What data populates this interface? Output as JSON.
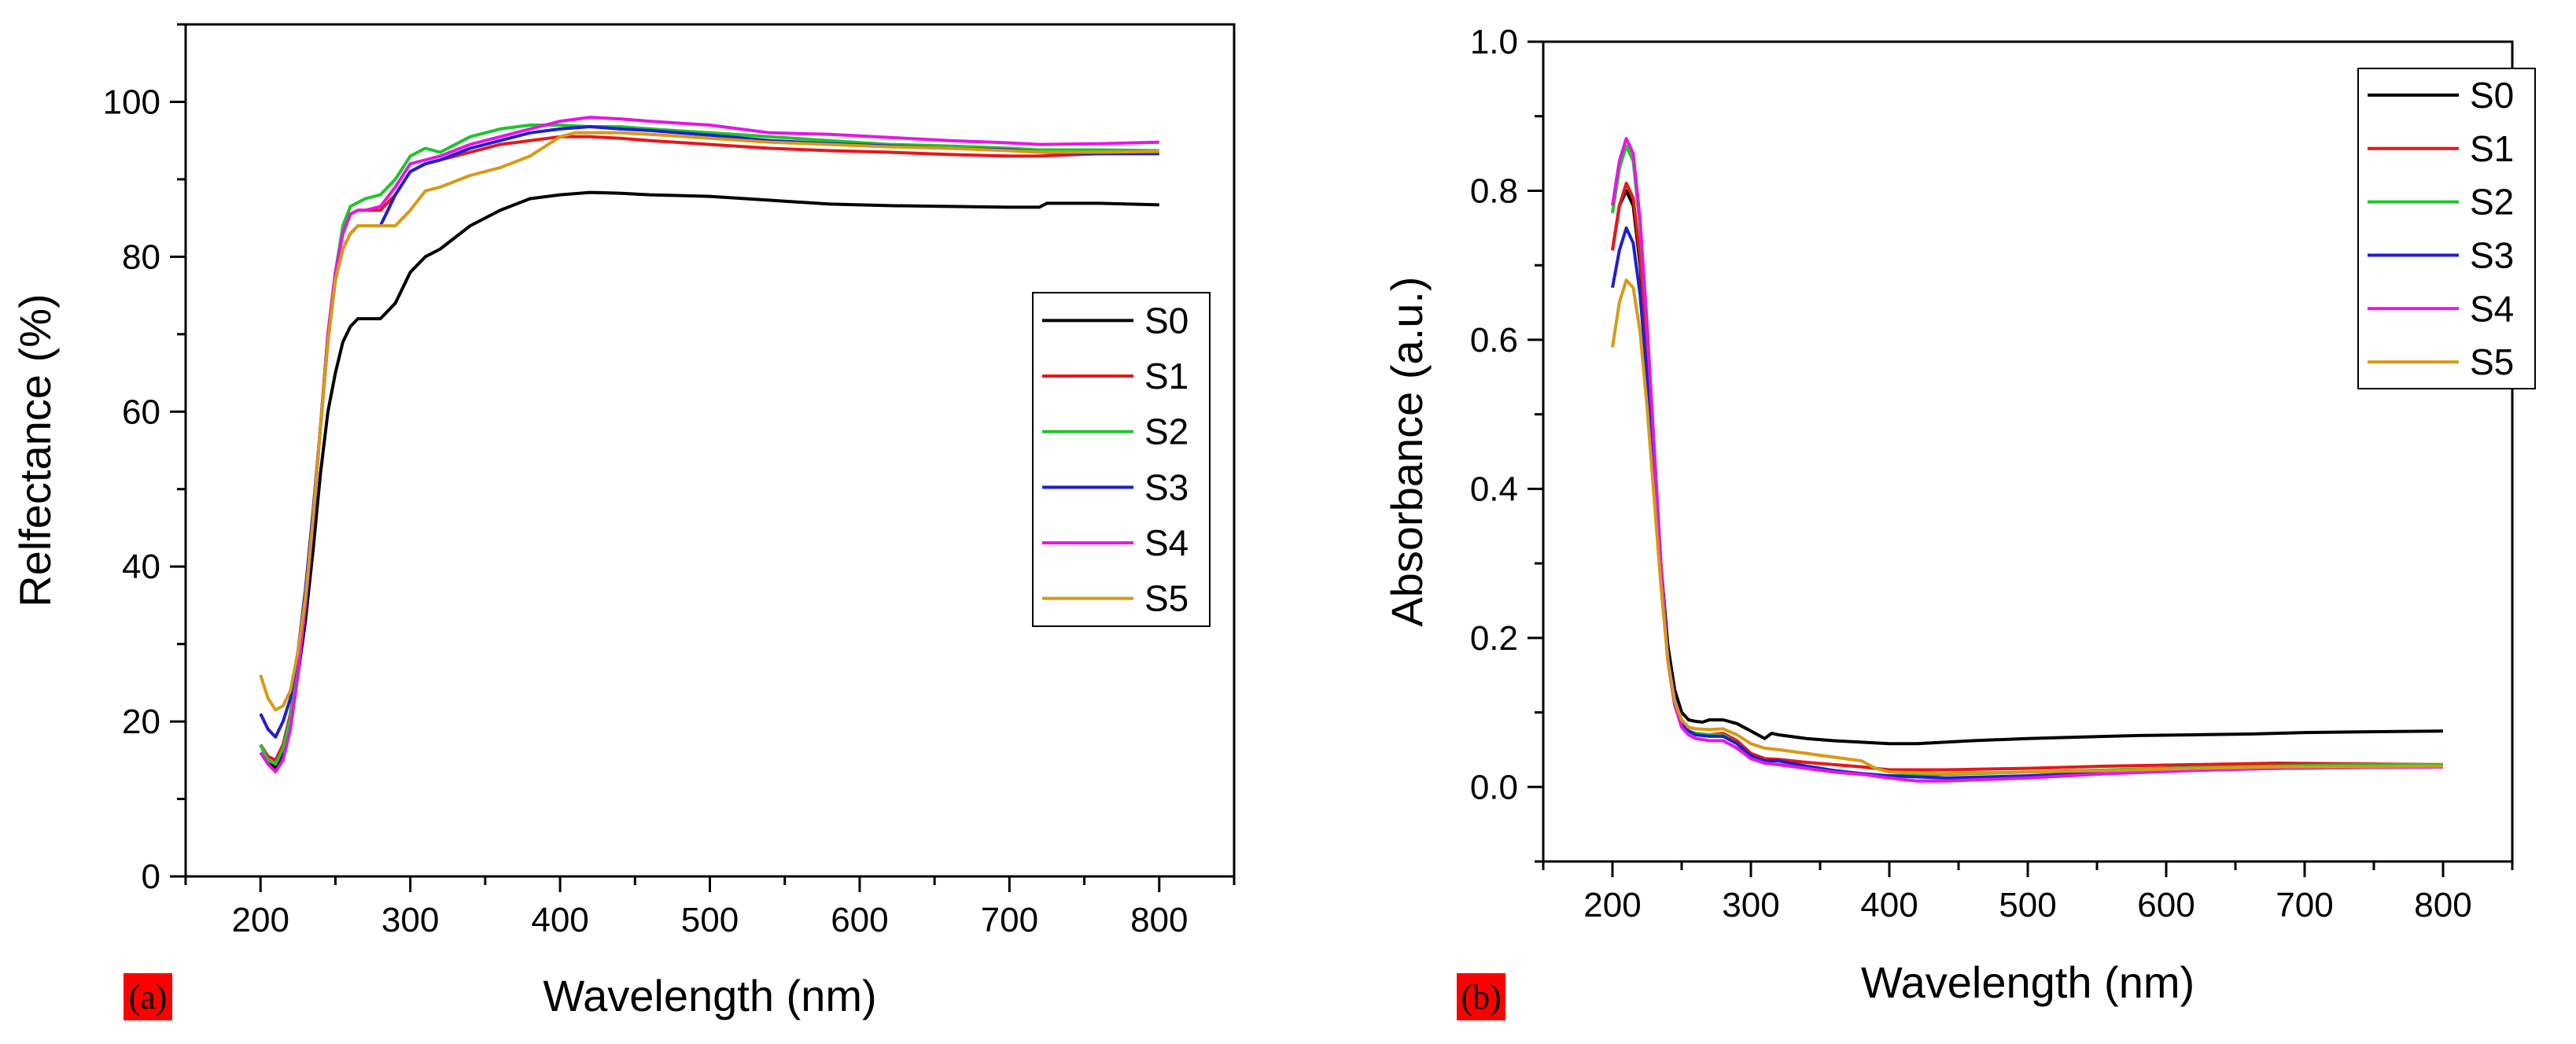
{
  "chart_data": [
    {
      "type": "line",
      "panel_label": "(a)",
      "xlabel": "Wavelength (nm)",
      "ylabel": "Relfectance (%)",
      "xlim": [
        150,
        850
      ],
      "ylim": [
        0,
        110
      ],
      "xticks": [
        200,
        300,
        400,
        500,
        600,
        700,
        800
      ],
      "yticks": [
        0,
        20,
        40,
        60,
        80,
        100
      ],
      "legend_position": "center-right",
      "series": [
        {
          "name": "S0",
          "color": "#000000",
          "x": [
            200,
            205,
            210,
            215,
            220,
            225,
            230,
            235,
            240,
            245,
            250,
            255,
            260,
            265,
            270,
            280,
            290,
            300,
            310,
            320,
            340,
            360,
            380,
            400,
            420,
            440,
            460,
            500,
            540,
            580,
            620,
            660,
            700,
            720,
            725,
            760,
            800
          ],
          "y": [
            17,
            15,
            14,
            16,
            20,
            26,
            33,
            42,
            52,
            60,
            65,
            69,
            71,
            72,
            72,
            72,
            74,
            78,
            80,
            81,
            84,
            86,
            87.5,
            88,
            88.3,
            88.2,
            88,
            87.8,
            87.3,
            86.8,
            86.6,
            86.5,
            86.4,
            86.4,
            86.9,
            86.9,
            86.7
          ]
        },
        {
          "name": "S1",
          "color": "#e8161b",
          "x": [
            200,
            205,
            210,
            215,
            220,
            225,
            230,
            235,
            240,
            245,
            250,
            255,
            260,
            265,
            270,
            280,
            290,
            300,
            310,
            320,
            340,
            360,
            380,
            400,
            420,
            440,
            460,
            500,
            540,
            580,
            620,
            660,
            700,
            720,
            760,
            800
          ],
          "y": [
            17,
            15.5,
            15,
            17,
            21,
            27,
            35,
            46,
            58,
            70,
            78,
            83,
            85.5,
            86,
            86,
            86,
            88,
            91,
            92,
            92.5,
            93.5,
            94.5,
            95,
            95.5,
            95.5,
            95.3,
            95,
            94.5,
            94,
            93.7,
            93.5,
            93.2,
            93,
            93,
            93.3,
            93.4
          ]
        },
        {
          "name": "S2",
          "color": "#1ec42c",
          "x": [
            200,
            205,
            210,
            215,
            220,
            225,
            230,
            235,
            240,
            245,
            250,
            255,
            260,
            265,
            270,
            280,
            290,
            300,
            310,
            320,
            340,
            360,
            380,
            400,
            420,
            440,
            460,
            500,
            540,
            580,
            620,
            660,
            700,
            720,
            760,
            800
          ],
          "y": [
            17,
            15,
            14.5,
            16.5,
            20.5,
            27,
            35,
            46,
            58,
            70,
            78,
            84,
            86.5,
            87,
            87.5,
            88,
            90,
            93,
            94,
            93.5,
            95.5,
            96.5,
            97,
            97,
            96.8,
            96.8,
            96.5,
            96,
            95.5,
            95,
            94.5,
            94.3,
            94,
            93.8,
            93.8,
            93.7
          ]
        },
        {
          "name": "S3",
          "color": "#1f1fd0",
          "x": [
            200,
            205,
            210,
            215,
            220,
            225,
            230,
            235,
            240,
            245,
            250,
            255,
            260,
            265,
            270,
            280,
            290,
            300,
            310,
            320,
            340,
            360,
            380,
            400,
            420,
            440,
            460,
            500,
            540,
            580,
            620,
            660,
            700,
            720,
            760,
            800
          ],
          "y": [
            21,
            19,
            18,
            20,
            23,
            29,
            37,
            47,
            58,
            69,
            77,
            81,
            83,
            84,
            84,
            84,
            88,
            91,
            92,
            92.5,
            94,
            95,
            96,
            96.5,
            96.8,
            96.5,
            96.3,
            95.7,
            95,
            94.6,
            94.3,
            94,
            93.8,
            93.5,
            93.3,
            93.3
          ]
        },
        {
          "name": "S4",
          "color": "#e517e5",
          "x": [
            200,
            205,
            210,
            215,
            220,
            225,
            230,
            235,
            240,
            245,
            250,
            255,
            260,
            265,
            270,
            280,
            290,
            300,
            310,
            320,
            340,
            360,
            380,
            400,
            420,
            440,
            460,
            500,
            540,
            580,
            620,
            660,
            700,
            720,
            760,
            800
          ],
          "y": [
            16,
            14.5,
            13.5,
            15,
            19,
            26,
            35,
            46,
            58,
            70,
            78,
            83,
            85.5,
            86,
            86,
            86.5,
            89,
            92,
            92.5,
            93,
            94.5,
            95.5,
            96.5,
            97.5,
            98,
            97.8,
            97.5,
            97,
            96,
            95.8,
            95.4,
            95,
            94.7,
            94.5,
            94.6,
            94.8
          ]
        },
        {
          "name": "S5",
          "color": "#d79a16",
          "x": [
            200,
            205,
            210,
            215,
            220,
            225,
            230,
            235,
            240,
            245,
            250,
            255,
            260,
            265,
            270,
            280,
            290,
            300,
            310,
            320,
            340,
            360,
            380,
            400,
            410,
            420,
            440,
            460,
            500,
            540,
            580,
            620,
            660,
            700,
            720,
            760,
            800
          ],
          "y": [
            26,
            23,
            21.5,
            22,
            24,
            29,
            36,
            46,
            58,
            69,
            77,
            81,
            83,
            84,
            84,
            84,
            84,
            86,
            88.5,
            89,
            90.5,
            91.5,
            93,
            95.5,
            96,
            96,
            96,
            95.8,
            95.3,
            94.8,
            94.5,
            94.2,
            94,
            93.7,
            93.5,
            93.5,
            93.6
          ]
        }
      ]
    },
    {
      "type": "line",
      "panel_label": "(b)",
      "xlabel": "Wavelength (nm)",
      "ylabel": "Absorbance (a.u.)",
      "xlim": [
        150,
        850
      ],
      "ylim": [
        -0.1,
        1.0
      ],
      "xticks": [
        200,
        300,
        400,
        500,
        600,
        700,
        800
      ],
      "yticks": [
        0.0,
        0.2,
        0.4,
        0.6,
        0.8,
        1.0
      ],
      "ytick_labels": [
        "0.0",
        "0.2",
        "0.4",
        "0.6",
        "0.8",
        "1.0"
      ],
      "legend_position": "top-right",
      "series": [
        {
          "name": "S0",
          "color": "#000000",
          "x": [
            200,
            205,
            210,
            215,
            220,
            225,
            230,
            235,
            240,
            245,
            250,
            255,
            260,
            265,
            270,
            280,
            290,
            300,
            310,
            315,
            320,
            340,
            360,
            380,
            400,
            420,
            440,
            460,
            500,
            540,
            580,
            620,
            660,
            700,
            740,
            800
          ],
          "y": [
            0.72,
            0.78,
            0.8,
            0.78,
            0.7,
            0.58,
            0.44,
            0.3,
            0.19,
            0.13,
            0.1,
            0.09,
            0.088,
            0.087,
            0.09,
            0.09,
            0.085,
            0.075,
            0.065,
            0.072,
            0.07,
            0.065,
            0.062,
            0.06,
            0.058,
            0.058,
            0.06,
            0.062,
            0.065,
            0.067,
            0.069,
            0.07,
            0.071,
            0.073,
            0.074,
            0.075
          ]
        },
        {
          "name": "S1",
          "color": "#e8161b",
          "x": [
            200,
            205,
            210,
            215,
            220,
            225,
            230,
            235,
            240,
            245,
            250,
            255,
            260,
            270,
            280,
            290,
            300,
            310,
            320,
            340,
            360,
            380,
            400,
            440,
            500,
            560,
            620,
            680,
            740,
            800
          ],
          "y": [
            0.72,
            0.78,
            0.81,
            0.79,
            0.71,
            0.59,
            0.44,
            0.29,
            0.17,
            0.11,
            0.085,
            0.075,
            0.072,
            0.07,
            0.072,
            0.062,
            0.045,
            0.038,
            0.037,
            0.033,
            0.03,
            0.027,
            0.023,
            0.023,
            0.025,
            0.028,
            0.03,
            0.032,
            0.031,
            0.03
          ]
        },
        {
          "name": "S2",
          "color": "#1ec42c",
          "x": [
            200,
            205,
            210,
            215,
            220,
            225,
            230,
            235,
            240,
            245,
            250,
            255,
            260,
            270,
            280,
            290,
            300,
            310,
            320,
            340,
            360,
            380,
            400,
            440,
            500,
            560,
            620,
            680,
            740,
            800
          ],
          "y": [
            0.77,
            0.83,
            0.86,
            0.84,
            0.75,
            0.62,
            0.46,
            0.3,
            0.17,
            0.11,
            0.085,
            0.075,
            0.072,
            0.07,
            0.07,
            0.058,
            0.04,
            0.032,
            0.03,
            0.025,
            0.02,
            0.017,
            0.015,
            0.017,
            0.02,
            0.023,
            0.026,
            0.028,
            0.03,
            0.03
          ]
        },
        {
          "name": "S3",
          "color": "#1f1fd0",
          "x": [
            200,
            205,
            210,
            215,
            220,
            225,
            230,
            235,
            240,
            245,
            250,
            255,
            260,
            270,
            280,
            290,
            300,
            310,
            320,
            340,
            360,
            380,
            400,
            440,
            500,
            560,
            620,
            680,
            740,
            800
          ],
          "y": [
            0.67,
            0.72,
            0.75,
            0.73,
            0.66,
            0.55,
            0.42,
            0.28,
            0.17,
            0.11,
            0.085,
            0.075,
            0.07,
            0.068,
            0.068,
            0.058,
            0.042,
            0.035,
            0.035,
            0.028,
            0.022,
            0.018,
            0.015,
            0.012,
            0.015,
            0.02,
            0.023,
            0.025,
            0.026,
            0.027
          ]
        },
        {
          "name": "S4",
          "color": "#e517e5",
          "x": [
            200,
            205,
            210,
            215,
            220,
            225,
            230,
            235,
            240,
            245,
            250,
            255,
            260,
            270,
            280,
            290,
            300,
            310,
            320,
            340,
            360,
            380,
            400,
            420,
            440,
            500,
            560,
            620,
            680,
            740,
            800
          ],
          "y": [
            0.78,
            0.84,
            0.87,
            0.85,
            0.76,
            0.62,
            0.46,
            0.3,
            0.17,
            0.11,
            0.08,
            0.07,
            0.065,
            0.062,
            0.062,
            0.052,
            0.038,
            0.032,
            0.03,
            0.025,
            0.02,
            0.017,
            0.012,
            0.008,
            0.008,
            0.012,
            0.018,
            0.022,
            0.025,
            0.026,
            0.027
          ]
        },
        {
          "name": "S5",
          "color": "#d79a16",
          "x": [
            200,
            205,
            210,
            215,
            220,
            225,
            230,
            235,
            240,
            245,
            250,
            255,
            260,
            270,
            280,
            290,
            300,
            310,
            320,
            340,
            360,
            380,
            390,
            400,
            440,
            500,
            560,
            620,
            680,
            740,
            800
          ],
          "y": [
            0.59,
            0.65,
            0.68,
            0.67,
            0.61,
            0.51,
            0.39,
            0.27,
            0.17,
            0.115,
            0.09,
            0.08,
            0.078,
            0.077,
            0.078,
            0.07,
            0.058,
            0.052,
            0.05,
            0.045,
            0.04,
            0.035,
            0.025,
            0.02,
            0.018,
            0.02,
            0.022,
            0.025,
            0.027,
            0.027,
            0.028
          ]
        }
      ]
    }
  ]
}
